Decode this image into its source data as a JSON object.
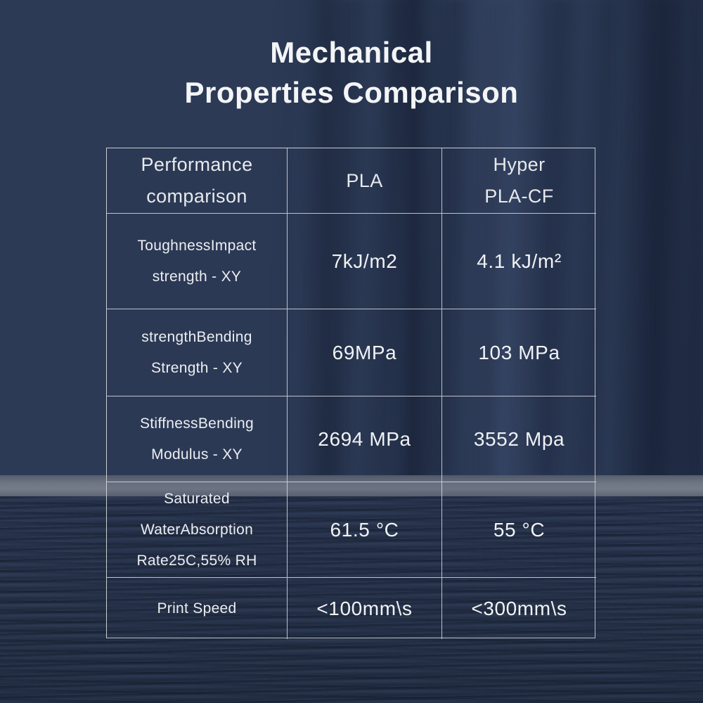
{
  "page": {
    "title": "Mechanical\nProperties Comparison"
  },
  "table": {
    "headers": {
      "property": "Performance\ncomparison",
      "pla": "PLA",
      "hyper": "Hyper\nPLA-CF"
    },
    "rows": [
      {
        "property": "ToughnessImpact\nstrength - XY",
        "pla": "7kJ/m2",
        "hyper": "4.1 kJ/m²"
      },
      {
        "property": "strengthBending\nStrength - XY",
        "pla": "69MPa",
        "hyper": "103 MPa"
      },
      {
        "property": "StiffnessBending\nModulus - XY",
        "pla": "2694 MPa",
        "hyper": "3552 Mpa"
      },
      {
        "property": "Saturated\nWaterAbsorption\nRate25C,55% RH",
        "pla": "61.5 °C",
        "hyper": "55 °C"
      },
      {
        "property": "Print Speed",
        "pla": "<100mm\\s",
        "hyper": "<300mm\\s"
      }
    ]
  },
  "chart_data": {
    "type": "table",
    "title": "Mechanical Properties Comparison",
    "columns": [
      "Performance comparison",
      "PLA",
      "Hyper PLA-CF"
    ],
    "rows": [
      [
        "ToughnessImpact strength - XY",
        "7kJ/m2",
        "4.1 kJ/m²"
      ],
      [
        "strengthBending Strength - XY",
        "69MPa",
        "103 MPa"
      ],
      [
        "StiffnessBending Modulus - XY",
        "2694 MPa",
        "3552 Mpa"
      ],
      [
        "Saturated WaterAbsorption Rate25C,55% RH",
        "61.5 °C",
        "55 °C"
      ],
      [
        "Print Speed",
        "<100mm\\s",
        "<300mm\\s"
      ]
    ]
  },
  "colors": {
    "background_navy": "#2d3b56",
    "bottom_navy": "#2b384f",
    "divider_band": "#6e7684",
    "table_border": "#d8dbe0",
    "text": "#eef0f3"
  }
}
